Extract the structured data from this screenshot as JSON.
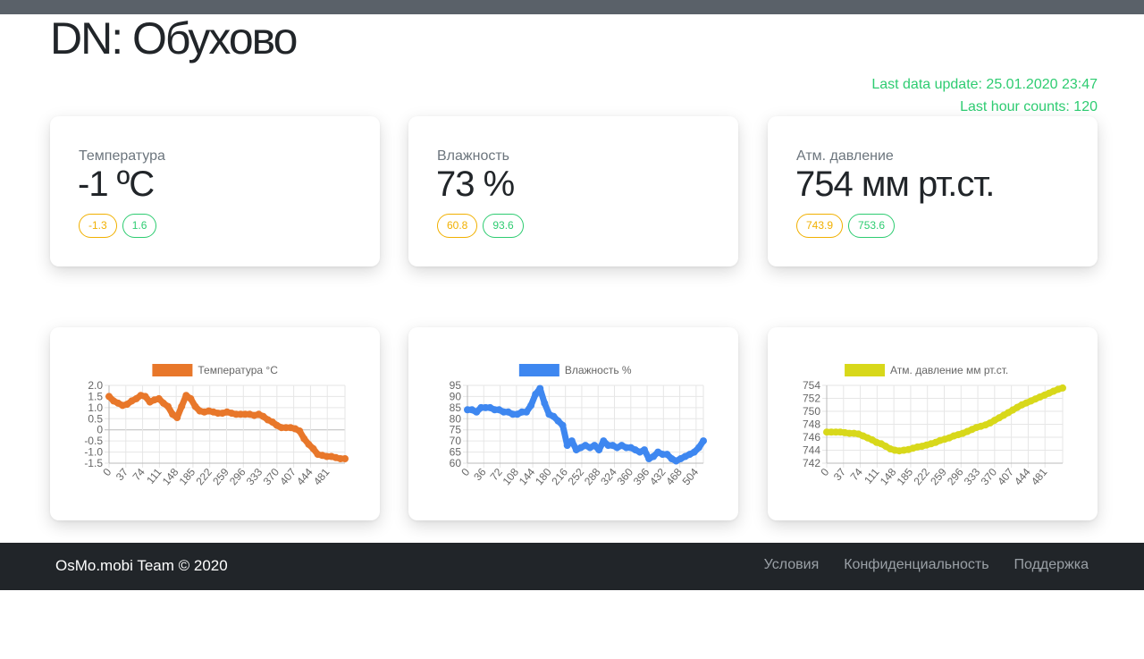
{
  "header": {
    "title": "DN: Обухово"
  },
  "update": {
    "last_update": "Last data update: 25.01.2020 23:47",
    "last_hour": "Last hour counts: 120"
  },
  "stats": [
    {
      "label": "Температура",
      "value": "-1 ºC",
      "min": "-1.3",
      "max": "1.6"
    },
    {
      "label": "Влажность",
      "value": "73 %",
      "min": "60.8",
      "max": "93.6"
    },
    {
      "label": "Атм. давление",
      "value": "754 мм рт.ст.",
      "min": "743.9",
      "max": "753.6"
    }
  ],
  "colors": {
    "min": "#f1b000",
    "max": "#2ecc71",
    "temp": "#e8772a",
    "hum": "#3e87f0",
    "pres": "#d8d81a",
    "accent": "#2ecc71"
  },
  "chart_data": [
    {
      "type": "line",
      "series": [
        {
          "name": "Температура °C",
          "color": "#e8772a"
        }
      ],
      "ylim": [
        -1.5,
        2.0
      ],
      "yticks": [
        "2.0",
        "1.5",
        "1.0",
        "0.5",
        "0",
        "-0.5",
        "-1.0",
        "-1.5"
      ],
      "xticks": [
        "0",
        "37",
        "74",
        "111",
        "148",
        "185",
        "222",
        "259",
        "296",
        "333",
        "370",
        "407",
        "444",
        "481"
      ],
      "xmax": 520,
      "x": [
        0,
        10,
        20,
        30,
        40,
        50,
        60,
        70,
        80,
        90,
        100,
        110,
        120,
        130,
        140,
        150,
        160,
        170,
        180,
        190,
        200,
        210,
        220,
        230,
        240,
        250,
        260,
        270,
        280,
        290,
        300,
        310,
        320,
        330,
        340,
        350,
        360,
        370,
        380,
        390,
        400,
        410,
        420,
        430,
        440,
        450,
        460,
        470,
        480,
        490,
        500,
        510,
        520
      ],
      "y": [
        1.5,
        1.3,
        1.2,
        1.1,
        1.15,
        1.3,
        1.4,
        1.55,
        1.5,
        1.25,
        1.35,
        1.4,
        1.2,
        1.05,
        0.7,
        0.55,
        1.05,
        1.55,
        1.4,
        1.05,
        0.85,
        0.8,
        0.85,
        0.8,
        0.75,
        0.75,
        0.8,
        0.75,
        0.7,
        0.7,
        0.7,
        0.7,
        0.65,
        0.7,
        0.6,
        0.45,
        0.35,
        0.2,
        0.1,
        0.1,
        0.1,
        0.05,
        -0.05,
        -0.4,
        -0.65,
        -0.85,
        -1.1,
        -1.15,
        -1.2,
        -1.2,
        -1.25,
        -1.3,
        -1.3
      ]
    },
    {
      "type": "line",
      "series": [
        {
          "name": "Влажность %",
          "color": "#3e87f0"
        }
      ],
      "ylim": [
        60,
        95
      ],
      "yticks": [
        "95",
        "90",
        "85",
        "80",
        "75",
        "70",
        "65",
        "60"
      ],
      "xticks": [
        "0",
        "36",
        "72",
        "108",
        "144",
        "180",
        "216",
        "252",
        "288",
        "324",
        "360",
        "396",
        "432",
        "468",
        "504"
      ],
      "xmax": 520,
      "x": [
        0,
        10,
        20,
        30,
        40,
        50,
        60,
        70,
        80,
        90,
        100,
        110,
        120,
        130,
        140,
        150,
        160,
        170,
        180,
        190,
        200,
        210,
        220,
        230,
        240,
        250,
        260,
        270,
        280,
        290,
        300,
        310,
        320,
        330,
        340,
        350,
        360,
        370,
        380,
        390,
        400,
        410,
        420,
        430,
        440,
        450,
        460,
        470,
        480,
        490,
        500,
        510,
        520
      ],
      "y": [
        84,
        84,
        83,
        85,
        85,
        85,
        84,
        84,
        83,
        83,
        82,
        82,
        83,
        83,
        86,
        91,
        93.6,
        87,
        82,
        81,
        79,
        77,
        68,
        70,
        66,
        67,
        68,
        67,
        68,
        66,
        70,
        68,
        68,
        67,
        68,
        67,
        67,
        66,
        65,
        66,
        62,
        63,
        65,
        64,
        64,
        62,
        61,
        62,
        63,
        64,
        65,
        67,
        70
      ]
    },
    {
      "type": "line",
      "series": [
        {
          "name": "Атм. давление мм рт.ст.",
          "color": "#d8d81a"
        }
      ],
      "ylim": [
        742,
        754
      ],
      "yticks": [
        "754",
        "752",
        "750",
        "748",
        "746",
        "744",
        "742"
      ],
      "xticks": [
        "0",
        "37",
        "74",
        "111",
        "148",
        "185",
        "222",
        "259",
        "296",
        "333",
        "370",
        "407",
        "444",
        "481"
      ],
      "xmax": 520,
      "x": [
        0,
        10,
        20,
        30,
        40,
        50,
        60,
        70,
        80,
        90,
        100,
        110,
        120,
        130,
        140,
        150,
        160,
        170,
        180,
        190,
        200,
        210,
        220,
        230,
        240,
        250,
        260,
        270,
        280,
        290,
        300,
        310,
        320,
        330,
        340,
        350,
        360,
        370,
        380,
        390,
        400,
        410,
        420,
        430,
        440,
        450,
        460,
        470,
        480,
        490,
        500,
        510,
        520
      ],
      "y": [
        746.8,
        746.8,
        746.8,
        746.8,
        746.7,
        746.6,
        746.6,
        746.5,
        746.2,
        745.9,
        745.6,
        745.2,
        745.0,
        744.6,
        744.2,
        744.0,
        743.9,
        744.0,
        744.1,
        744.3,
        744.5,
        744.6,
        744.8,
        745.0,
        745.2,
        745.5,
        745.7,
        745.9,
        746.2,
        746.4,
        746.6,
        746.9,
        747.2,
        747.5,
        747.7,
        747.9,
        748.2,
        748.6,
        749.0,
        749.4,
        749.8,
        750.2,
        750.6,
        751.0,
        751.3,
        751.6,
        751.9,
        752.2,
        752.5,
        752.8,
        753.1,
        753.4,
        753.6
      ]
    }
  ],
  "footer": {
    "copyright": "OsMo.mobi Team © 2020",
    "links": [
      "Условия",
      "Конфиденциальность",
      "Поддержка"
    ]
  }
}
